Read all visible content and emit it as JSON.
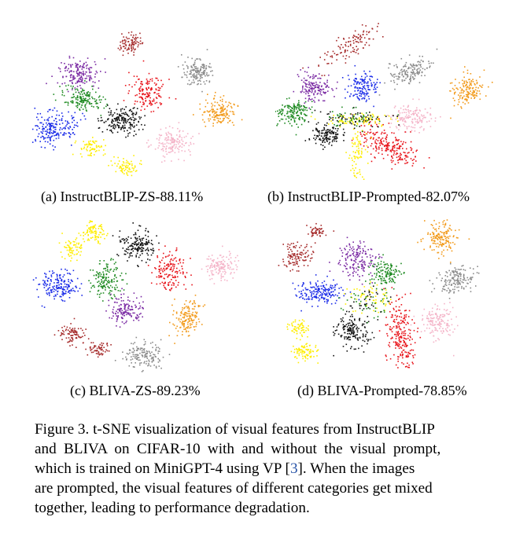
{
  "colors": {
    "red": "#e8141b",
    "blue": "#1a2be8",
    "green": "#1f8a22",
    "purple": "#7a2aa3",
    "black": "#111111",
    "gray": "#8a8a8a",
    "orange": "#f29a1a",
    "brown": "#a52a2a",
    "yellow": "#ffee00",
    "pink": "#f4b4c8",
    "caption_ref": "#2a55a8"
  },
  "panels": [
    {
      "id": "a",
      "subcaption": "(a) InstructBLIP-ZS-88.11%",
      "plot": "tsne-scatter"
    },
    {
      "id": "b",
      "subcaption": "(b) InstructBLIP-Prompted-82.07%",
      "plot": "tsne-scatter"
    },
    {
      "id": "c",
      "subcaption": "(c) BLIVA-ZS-89.23%",
      "plot": "tsne-scatter"
    },
    {
      "id": "d",
      "subcaption": "(d) BLIVA-Prompted-78.85%",
      "plot": "tsne-scatter"
    }
  ],
  "caption": {
    "line1": "Figure 3. t-SNE visualization of visual features from InstructBLIP",
    "line2": "and BLIVA on CIFAR-10 with and without the visual prompt,",
    "line3_pre": "which is trained on MiniGPT-4 using VP [",
    "line3_ref": "3",
    "line3_post": "].  When the images",
    "line4": "are prompted, the visual features of different categories get mixed",
    "line5": "together, leading to performance degradation."
  }
}
